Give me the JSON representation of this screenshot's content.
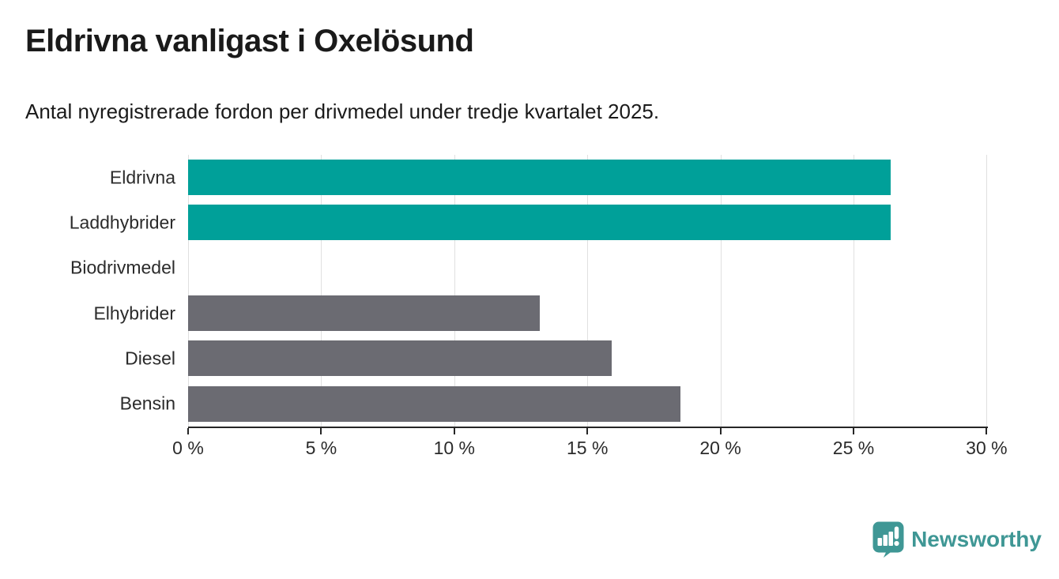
{
  "header": {
    "title": "Eldrivna vanligast i Oxelösund",
    "subtitle": "Antal nyregistrerade fordon per drivmedel under tredje kvartalet 2025."
  },
  "chart_data": {
    "type": "bar",
    "orientation": "horizontal",
    "title": "Eldrivna vanligast i Oxelösund",
    "subtitle": "Antal nyregistrerade fordon per drivmedel under tredje kvartalet 2025.",
    "categories": [
      "Eldrivna",
      "Laddhybrider",
      "Biodrivmedel",
      "Elhybrider",
      "Diesel",
      "Bensin"
    ],
    "values": [
      26.4,
      26.4,
      0,
      13.2,
      15.9,
      18.5
    ],
    "unit": "%",
    "xlim": [
      0,
      30
    ],
    "x_tick_values": [
      0,
      5,
      10,
      15,
      20,
      25,
      30
    ],
    "x_tick_labels": [
      "0 %",
      "5 %",
      "10 %",
      "15 %",
      "20 %",
      "25 %",
      "30 %"
    ],
    "grid": true,
    "legend": false,
    "bar_colors": [
      "#00A099",
      "#00A099",
      "#6B6B72",
      "#6B6B72",
      "#6B6B72",
      "#6B6B72"
    ],
    "colors": {
      "highlight": "#00A099",
      "default_bar": "#6B6B72",
      "gridline": "#E0E0E0",
      "axis": "#262626",
      "text": "#2B2B2B"
    }
  },
  "footer": {
    "brand": "Newsworthy",
    "logo_color": "#3F9795"
  }
}
